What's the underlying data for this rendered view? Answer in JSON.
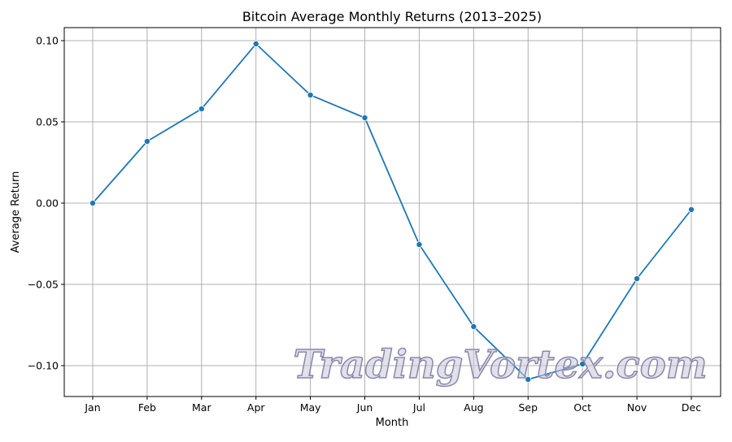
{
  "chart_data": {
    "type": "line",
    "title": "Bitcoin Average Monthly Returns (2013–2025)",
    "xlabel": "Month",
    "ylabel": "Average Return",
    "categories": [
      "Jan",
      "Feb",
      "Mar",
      "Apr",
      "May",
      "Jun",
      "Jul",
      "Aug",
      "Sep",
      "Oct",
      "Nov",
      "Dec"
    ],
    "values": [
      0.0,
      0.038,
      0.058,
      0.098,
      0.0665,
      0.0525,
      -0.0255,
      -0.076,
      -0.1085,
      -0.099,
      -0.0465,
      -0.004
    ],
    "ylim": [
      -0.119,
      0.108
    ],
    "yticks": [
      0.1,
      0.05,
      0.0,
      -0.05,
      -0.1
    ],
    "ytick_labels": [
      "0.10",
      "0.05",
      "0.00",
      "−0.05",
      "−0.10"
    ],
    "grid": true,
    "marker": "circle",
    "color": "#1f77b4"
  },
  "watermark": "TradingVortex.com"
}
